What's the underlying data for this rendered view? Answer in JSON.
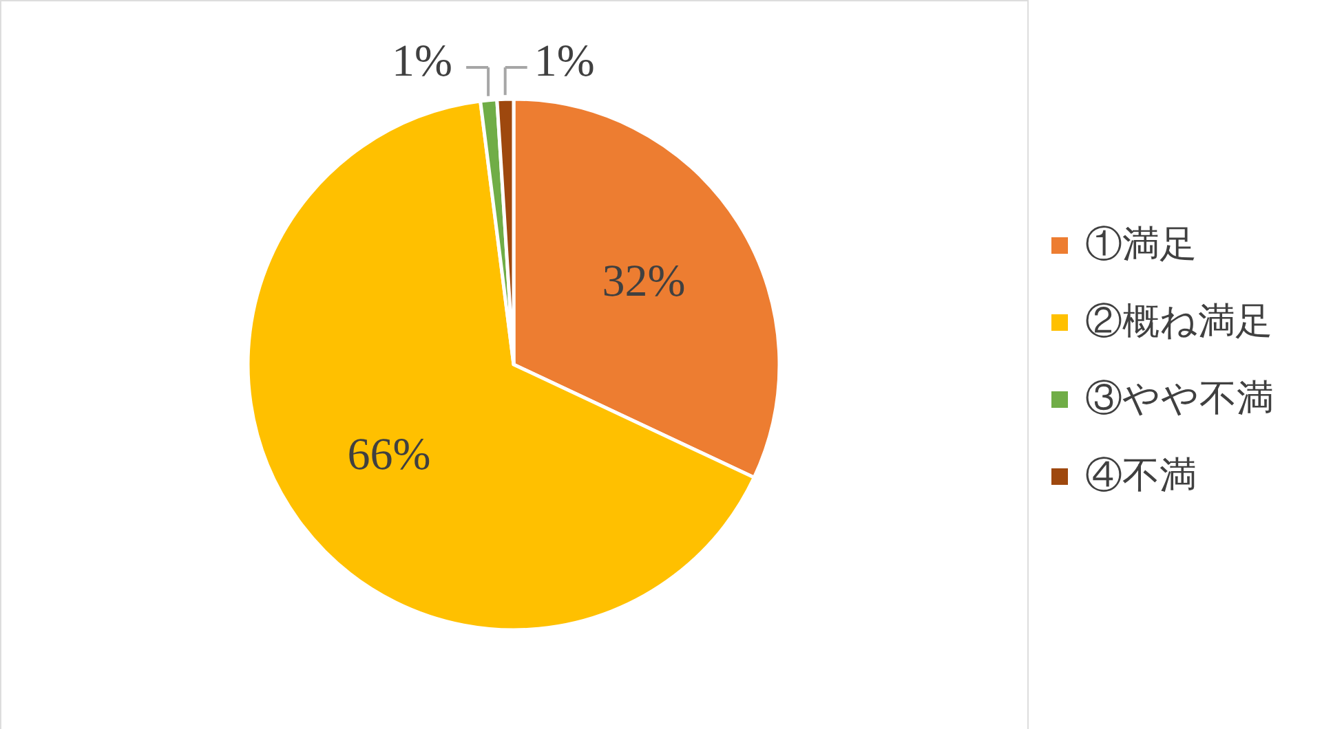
{
  "chart_data": {
    "type": "pie",
    "categories": [
      "①満足",
      "②概ね満足",
      "③やや不満",
      "④不満"
    ],
    "values": [
      32,
      66,
      1,
      1
    ],
    "colors": [
      "#ed7d31",
      "#ffc000",
      "#70ad47",
      "#9e480e"
    ],
    "value_labels": [
      "32%",
      "66%",
      "1%",
      "1%"
    ],
    "legend": "right"
  }
}
